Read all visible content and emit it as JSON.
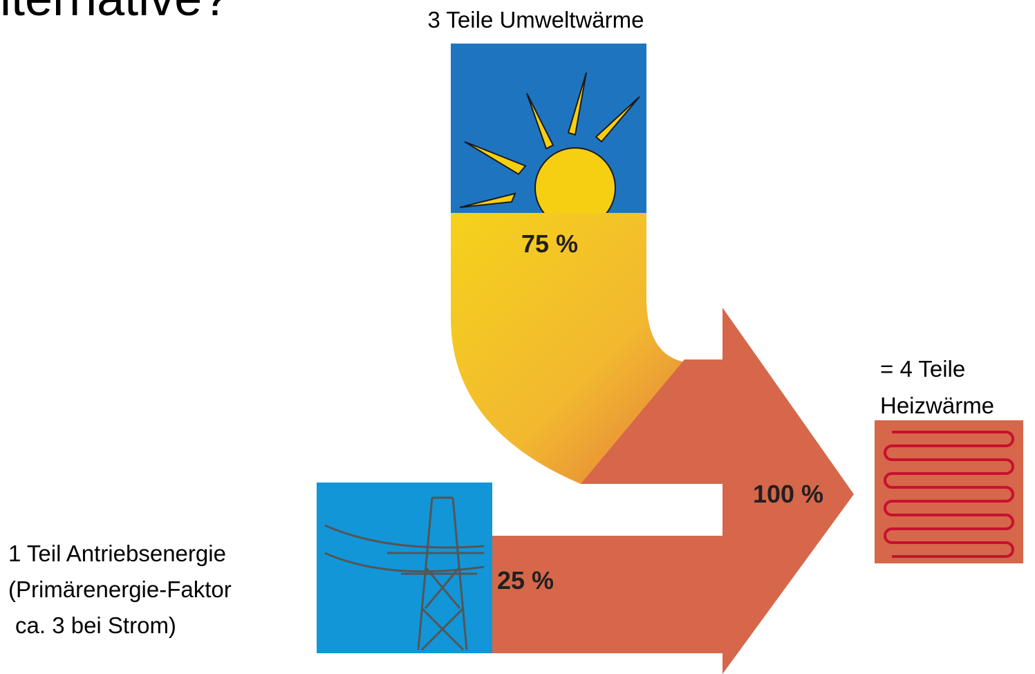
{
  "header": {
    "title": "lternative?"
  },
  "nodes": [
    {
      "label": "3 Teile Umweltwärme",
      "share": "75 %"
    },
    {
      "label_lines": [
        "1 Teil Antriebsenergie",
        "(Primärenergie-Faktor",
        "ca. 3 bei Strom)"
      ],
      "share": "25 %"
    },
    {
      "label_lines": [
        "= 4 Teile",
        "Heizwärme"
      ],
      "share": "100 %"
    }
  ]
}
